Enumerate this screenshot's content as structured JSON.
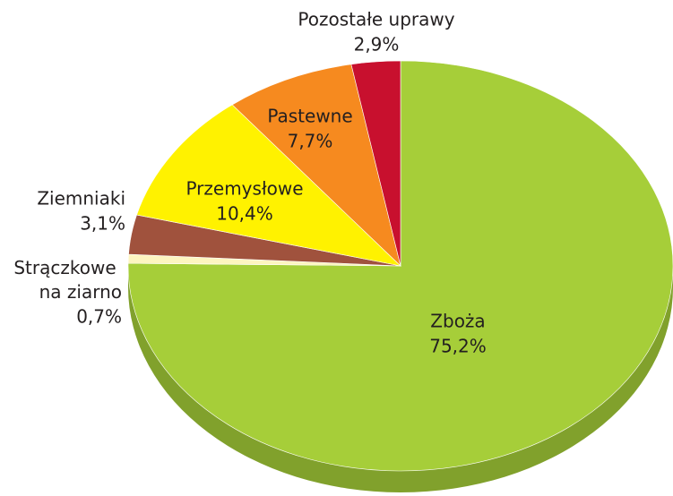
{
  "chart_data": {
    "type": "pie",
    "categories": [
      "Zboża",
      "Strączkowe na ziarno",
      "Ziemniaki",
      "Przemysłowe",
      "Pastewne",
      "Pozostałe uprawy"
    ],
    "values": [
      75.2,
      0.7,
      3.1,
      10.4,
      7.7,
      2.9
    ],
    "value_labels": [
      "75,2%",
      "0,7%",
      "3,1%",
      "10,4%",
      "7,7%",
      "2,9%"
    ],
    "colors": [
      "#a6ce39",
      "#fdf5c0",
      "#a0523d",
      "#fff200",
      "#f68a1f",
      "#c8102e"
    ]
  }
}
